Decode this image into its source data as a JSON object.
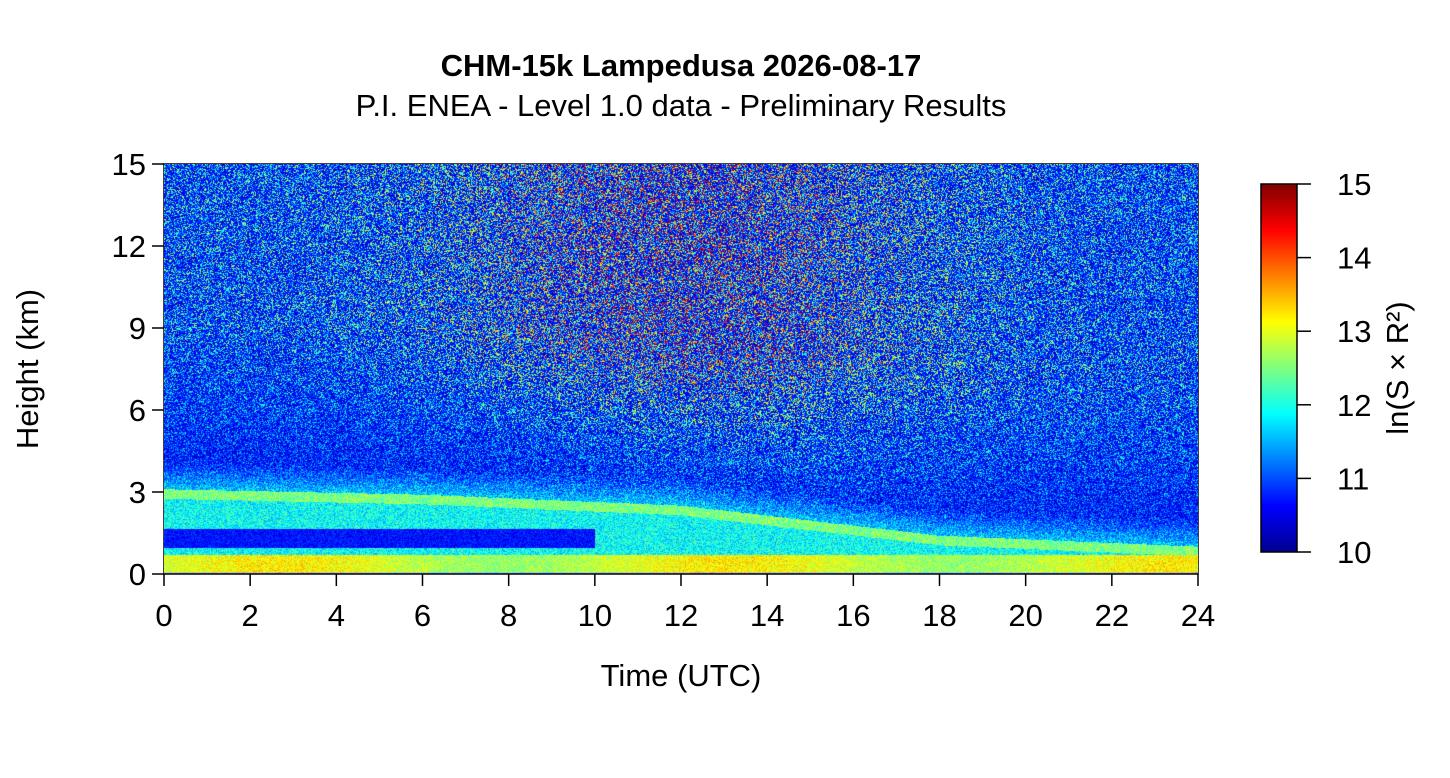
{
  "chart_data": {
    "type": "heatmap",
    "title": "CHM-15k Lampedusa 2026-08-17",
    "subtitle": "P.I. ENEA - Level 1.0 data - Preliminary Results",
    "xlabel": "Time (UTC)",
    "ylabel": "Height (km)",
    "xlim": [
      0,
      24
    ],
    "ylim": [
      0,
      15
    ],
    "xticks": [
      0,
      2,
      4,
      6,
      8,
      10,
      12,
      14,
      16,
      18,
      20,
      22,
      24
    ],
    "yticks": [
      0,
      3,
      6,
      9,
      12,
      15
    ],
    "colorbar": {
      "label": "ln(S × R²)",
      "range": [
        10,
        15
      ],
      "ticks": [
        10,
        11,
        12,
        13,
        14,
        15
      ],
      "colormap": "jet",
      "colors": [
        "#00008f",
        "#0000ff",
        "#00ffff",
        "#ffff00",
        "#ff0000",
        "#800000"
      ]
    },
    "features": {
      "near_surface_layer": {
        "height_km": 0.4,
        "value": 13.2
      },
      "lower_aerosol_layer": {
        "height_km": 1.2,
        "value": 11.0
      },
      "upper_aerosol_layer_top_km": [
        {
          "time": 0,
          "height_km": 3.1
        },
        {
          "time": 6,
          "height_km": 2.9
        },
        {
          "time": 12,
          "height_km": 2.5
        },
        {
          "time": 18,
          "height_km": 1.4
        },
        {
          "time": 24,
          "height_km": 1.0
        }
      ],
      "noise_region": {
        "min_height_km": 3,
        "max_height_km": 15
      }
    }
  }
}
